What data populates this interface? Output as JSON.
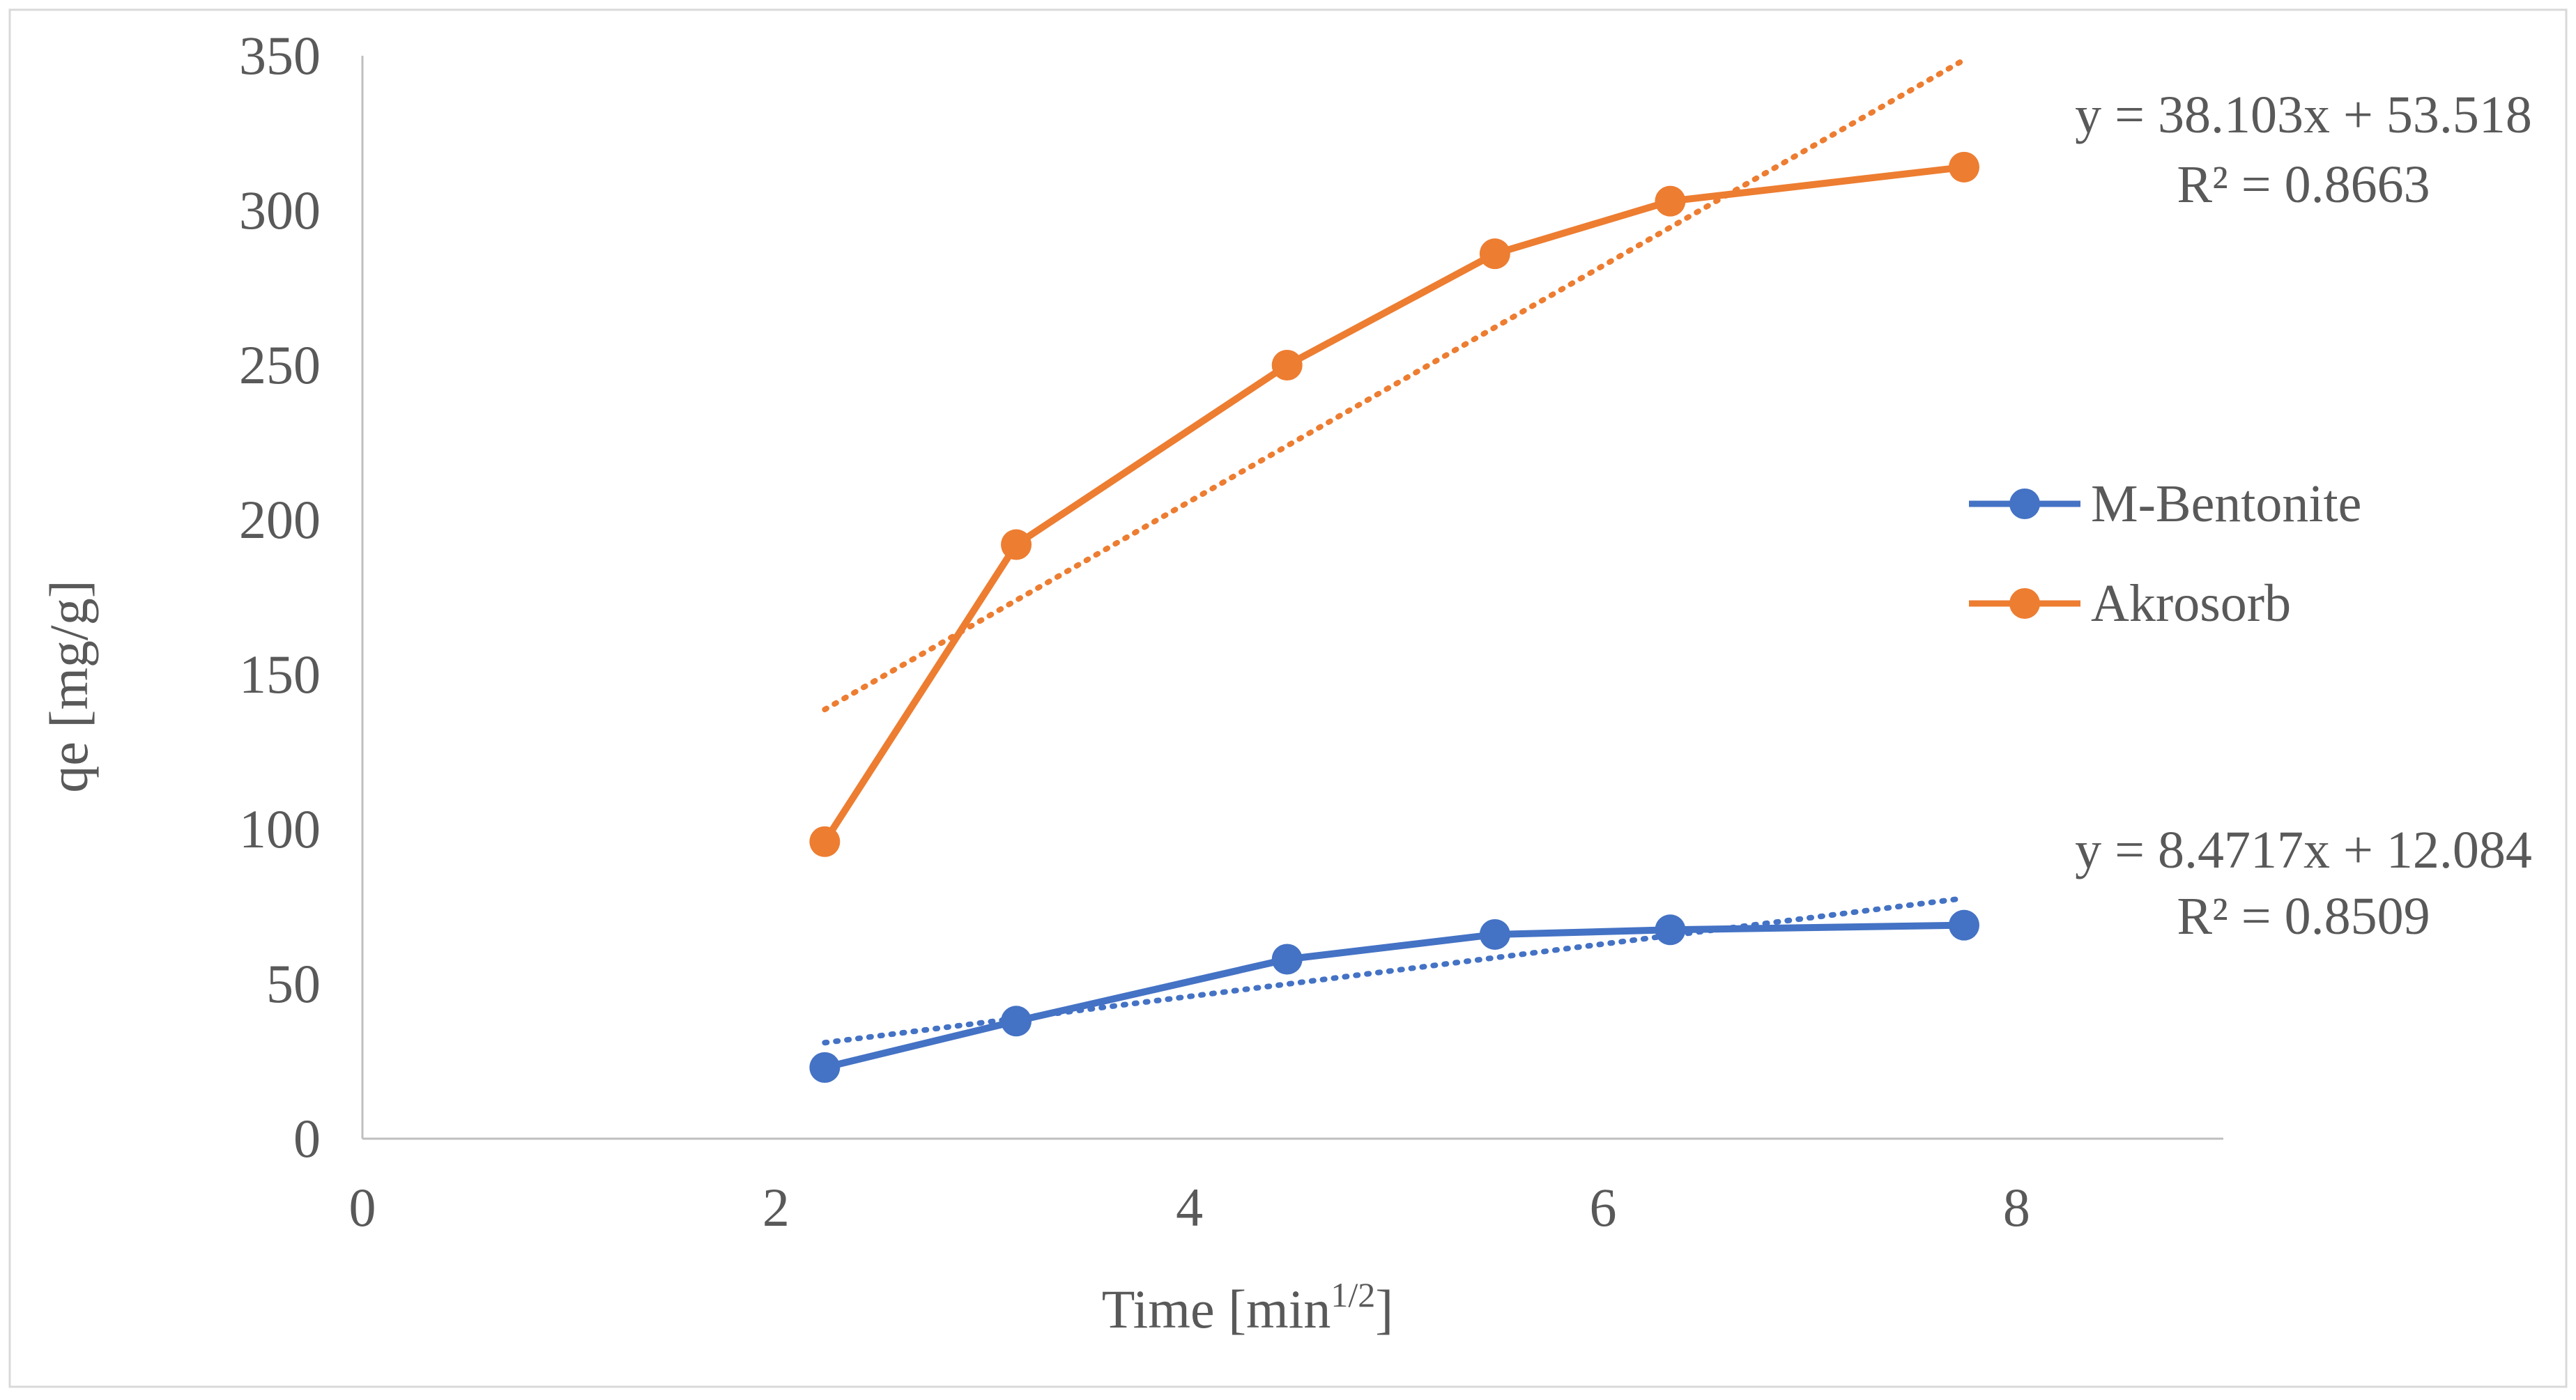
{
  "chart_data": {
    "type": "scatter",
    "title": "",
    "xlabel": "Time [min",
    "xlabel_sup": "1/2",
    "xlabel_close": "]",
    "ylabel": "qe [mg/g]",
    "xlim": [
      0,
      9
    ],
    "ylim": [
      0,
      350
    ],
    "x_ticks": [
      0,
      2,
      4,
      6,
      8
    ],
    "y_ticks": [
      0,
      50,
      100,
      150,
      200,
      250,
      300,
      350
    ],
    "x_tick_labels": [
      "0",
      "2",
      "4",
      "6",
      "8"
    ],
    "y_tick_labels": [
      "0",
      "50",
      "100",
      "150",
      "200",
      "250",
      "300",
      "350"
    ],
    "grid": false,
    "legend_position": "right",
    "series": [
      {
        "name": "M-Bentonite",
        "color": "#4472C4",
        "x": [
          2.236,
          3.162,
          4.472,
          5.477,
          6.325,
          7.746
        ],
        "y": [
          23,
          38,
          58,
          66,
          67.5,
          69
        ],
        "trendline": {
          "slope": 8.4717,
          "intercept": 12.084,
          "equation": "y = 8.4717x + 12.084",
          "r2": "R² = 0.8509"
        }
      },
      {
        "name": "Akrosorb",
        "color": "#ED7D31",
        "x": [
          2.236,
          3.162,
          4.472,
          5.477,
          6.325,
          7.746
        ],
        "y": [
          96,
          192,
          250,
          286,
          303,
          314
        ],
        "trendline": {
          "slope": 38.103,
          "intercept": 53.518,
          "equation": "y = 38.103x + 53.518",
          "r2": "R² = 0.8663"
        }
      }
    ]
  }
}
